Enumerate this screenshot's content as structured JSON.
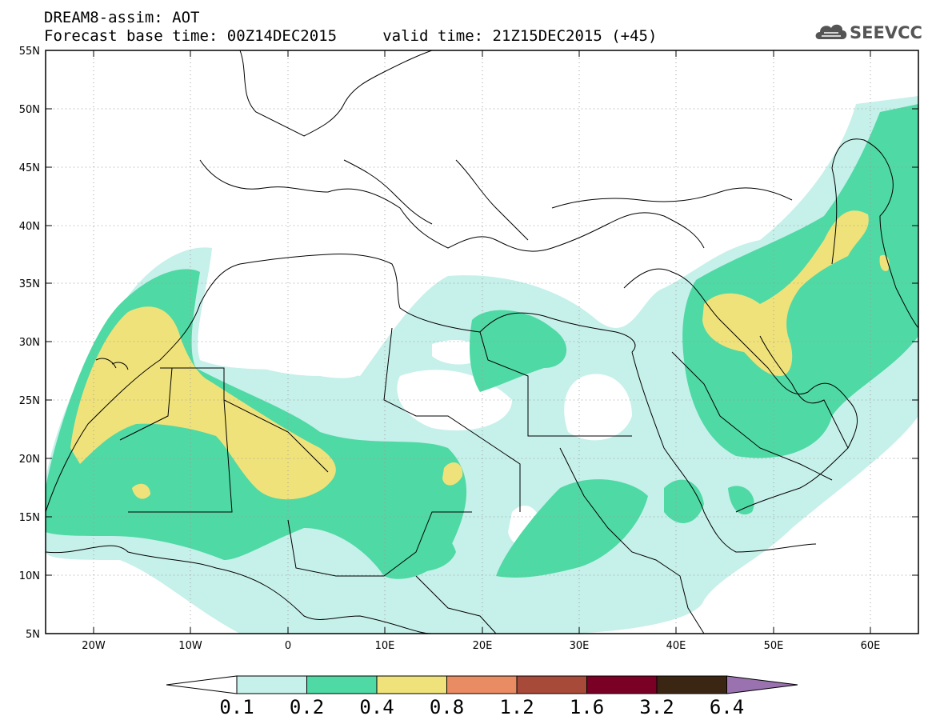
{
  "header": {
    "title_line1": "DREAM8-assim: AOT",
    "title_line2": "Forecast base time: 00Z14DEC2015     valid time: 21Z15DEC2015 (+45)"
  },
  "logo": {
    "text": "SEEVCCC",
    "icon": "cloud-icon"
  },
  "map": {
    "extent": {
      "lon_min": -25,
      "lon_max": 65,
      "lat_min": 5,
      "lat_max": 55
    },
    "lat_labels": [
      "55N",
      "50N",
      "45N",
      "40N",
      "35N",
      "30N",
      "25N",
      "20N",
      "15N",
      "10N",
      "5N"
    ],
    "lon_labels": [
      "20W",
      "10W",
      "0",
      "10E",
      "20E",
      "30E",
      "40E",
      "50E",
      "60E"
    ],
    "grid": "dotted"
  },
  "colorbar": {
    "labels": [
      "0.1",
      "0.2",
      "0.4",
      "0.8",
      "1.2",
      "1.6",
      "3.2",
      "6.4"
    ],
    "colors": [
      "#c6f0ea",
      "#4fd9a4",
      "#f0e27a",
      "#e98c63",
      "#a84a3a",
      "#7a0026",
      "#3b2613",
      "#9b72b0"
    ],
    "under_color": "#ffffff"
  },
  "colors": {
    "level1": "#c6f0ea",
    "level2": "#4fd9a4",
    "level3": "#f0e27a",
    "border": "#000000"
  }
}
